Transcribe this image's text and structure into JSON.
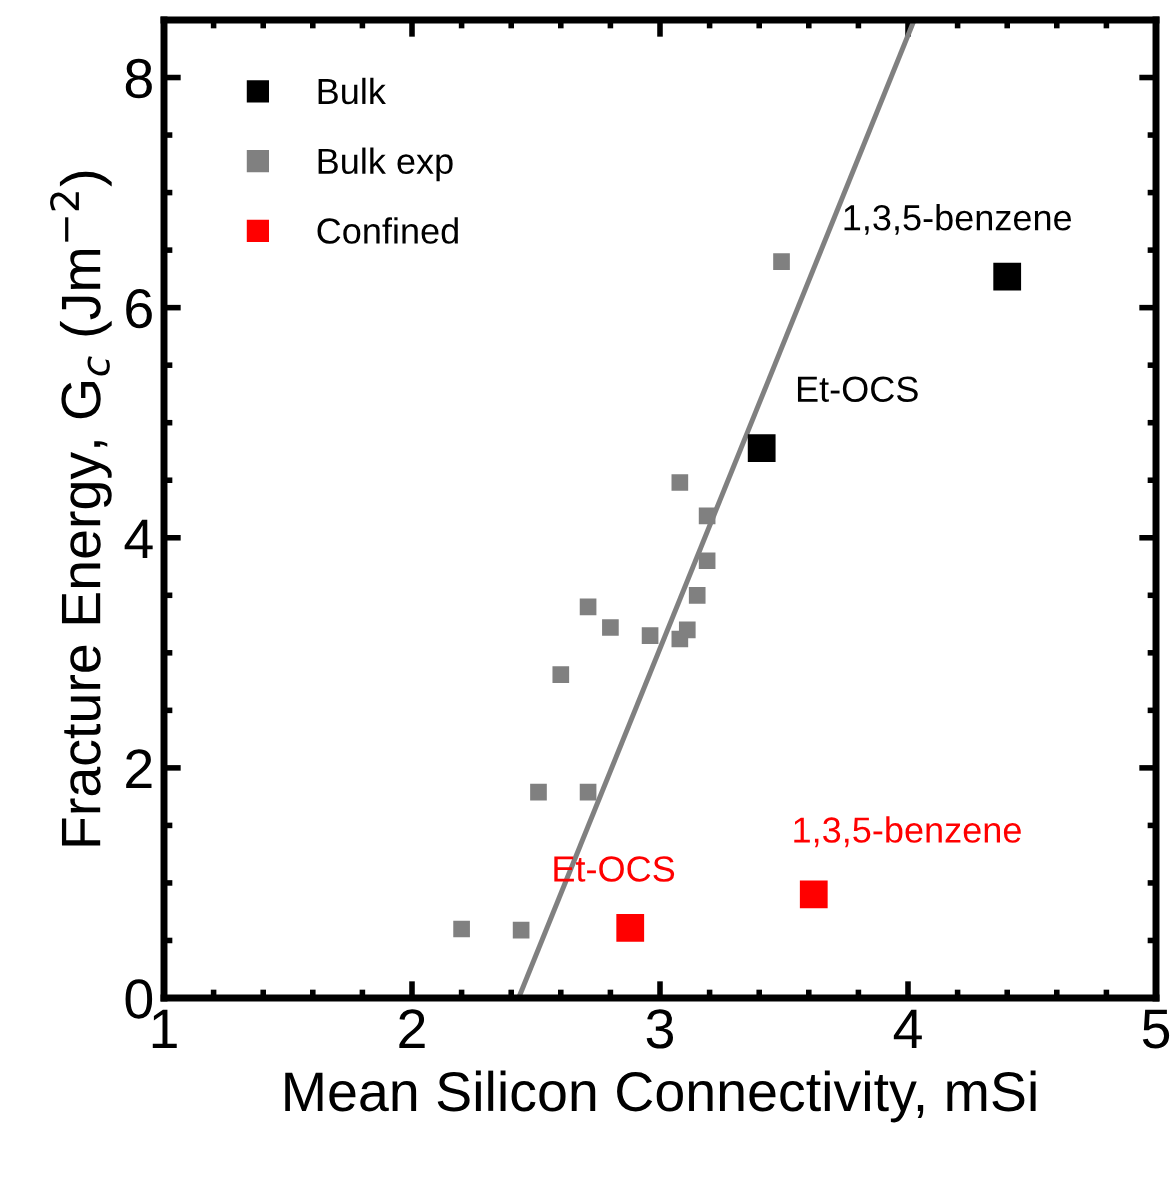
{
  "chart_data": {
    "type": "scatter",
    "xlabel": "Mean Silicon Connectivity, mSi",
    "ylabel": "Fracture Energy, G$_{c}$ (Jm$^{−2}$)",
    "xlim": [
      1,
      5
    ],
    "ylim": [
      0,
      8.5
    ],
    "xticks": [
      1,
      2,
      3,
      4,
      5
    ],
    "yticks": [
      0,
      2,
      4,
      6,
      8
    ],
    "legend": "top left",
    "grid": false,
    "series": [
      {
        "name": "Bulk",
        "color": "#000000",
        "marker": "square",
        "x": [
          3.41,
          4.4
        ],
        "values": [
          4.78,
          6.27
        ]
      },
      {
        "name": "Bulk exp",
        "color": "#808080",
        "marker": "square",
        "x": [
          2.2,
          2.44,
          2.51,
          2.71,
          2.6,
          2.71,
          2.8,
          2.96,
          3.08,
          3.11,
          3.15,
          3.19,
          3.19,
          3.08,
          3.49
        ],
        "values": [
          0.6,
          0.59,
          1.79,
          1.79,
          2.81,
          3.4,
          3.22,
          3.15,
          3.12,
          3.2,
          3.5,
          3.8,
          4.19,
          4.48,
          6.4
        ]
      },
      {
        "name": "Confined",
        "color": "#ff0000",
        "marker": "square",
        "x": [
          2.88,
          3.62
        ],
        "values": [
          0.61,
          0.9
        ]
      },
      {
        "type": "line",
        "color": "#808080",
        "marker": "none",
        "x": [
          2.43,
          4.025
        ],
        "values": [
          0,
          8.5
        ]
      }
    ],
    "annotations": [
      {
        "text": "Et-OCS",
        "x": 3.41,
        "y": 4.78
      },
      {
        "text": "1,3,5-benzene",
        "x": 4.4,
        "y": 6.27
      },
      {
        "text": "Et-OCS",
        "x": 2.88,
        "y": 0.61
      },
      {
        "text": "1,3,5-benzene",
        "x": 3.62,
        "y": 0.9
      }
    ]
  }
}
